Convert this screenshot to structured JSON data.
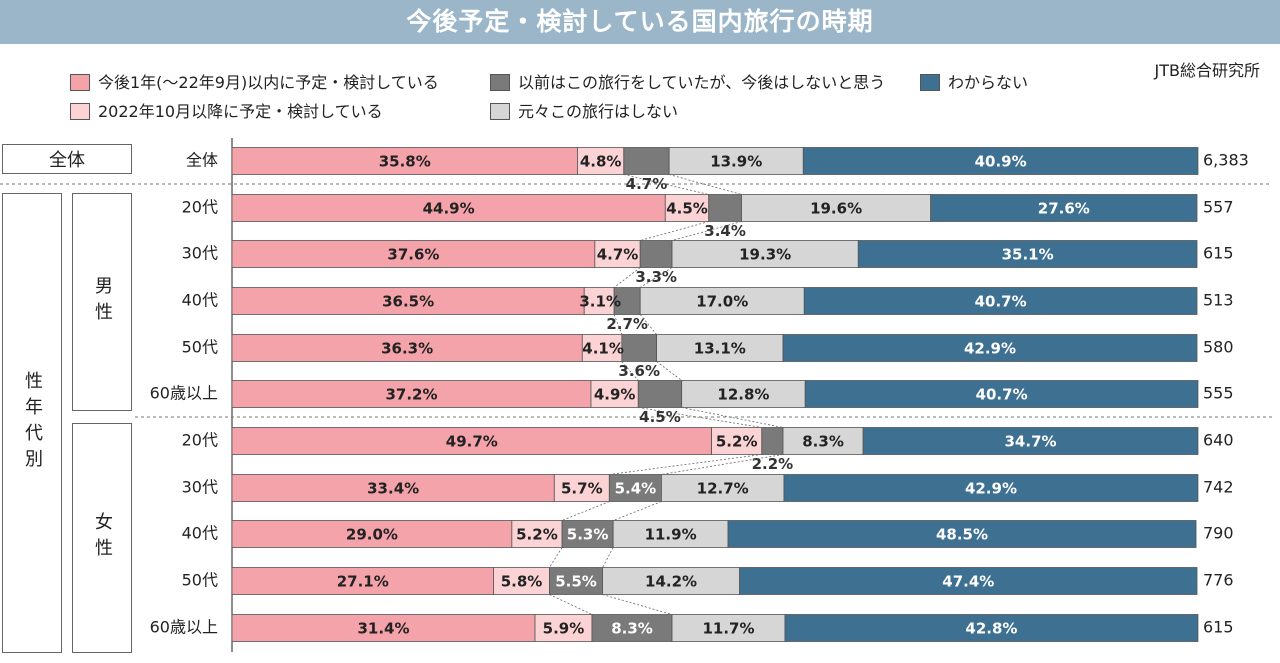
{
  "title": "今後予定・検討している国内旅行の時期",
  "source": "JTB総合研究所",
  "legend": [
    {
      "label": "今後1年(～22年9月)以内に予定・検討している",
      "color": "#f4a3aa"
    },
    {
      "label": "2022年10月以降に予定・検討している",
      "color": "#fbd3d5"
    },
    {
      "label": "以前はこの旅行をしていたが、今後はしないと思う",
      "color": "#7a7a7a"
    },
    {
      "label": "元々この旅行はしない",
      "color": "#d6d6d6"
    },
    {
      "label": "わからない",
      "color": "#3e7092"
    }
  ],
  "groups": {
    "total": "全体",
    "sex_age": "性年代別",
    "male": "男性",
    "female": "女性"
  },
  "chart_data": {
    "type": "bar",
    "orientation": "horizontal-stacked-100%",
    "categories": [
      "全体",
      "20代",
      "30代",
      "40代",
      "50代",
      "60歳以上",
      "20代",
      "30代",
      "40代",
      "50代",
      "60歳以上"
    ],
    "series": [
      {
        "name": "今後1年(～22年9月)以内に予定・検討している",
        "values": [
          35.8,
          44.9,
          37.6,
          36.5,
          36.3,
          37.2,
          49.7,
          33.4,
          29.0,
          27.1,
          31.4
        ]
      },
      {
        "name": "2022年10月以降に予定・検討している",
        "values": [
          4.8,
          4.5,
          4.7,
          3.1,
          4.1,
          4.9,
          5.2,
          5.7,
          5.2,
          5.8,
          5.9
        ]
      },
      {
        "name": "以前はこの旅行をしていたが、今後はしないと思う",
        "values": [
          4.7,
          3.4,
          3.3,
          2.7,
          3.6,
          4.5,
          2.2,
          5.4,
          5.3,
          5.5,
          8.3
        ]
      },
      {
        "name": "元々この旅行はしない",
        "values": [
          13.9,
          19.6,
          19.3,
          17.0,
          13.1,
          12.8,
          8.3,
          12.7,
          11.9,
          14.2,
          11.7
        ]
      },
      {
        "name": "わからない",
        "values": [
          40.9,
          27.6,
          35.1,
          40.7,
          42.9,
          40.7,
          34.7,
          42.9,
          48.5,
          47.4,
          42.8
        ]
      }
    ],
    "n": [
      "6,383",
      "557",
      "615",
      "513",
      "580",
      "555",
      "640",
      "742",
      "790",
      "776",
      "615"
    ],
    "xlim": [
      0,
      100
    ],
    "grid": false,
    "legend_position": "top"
  }
}
